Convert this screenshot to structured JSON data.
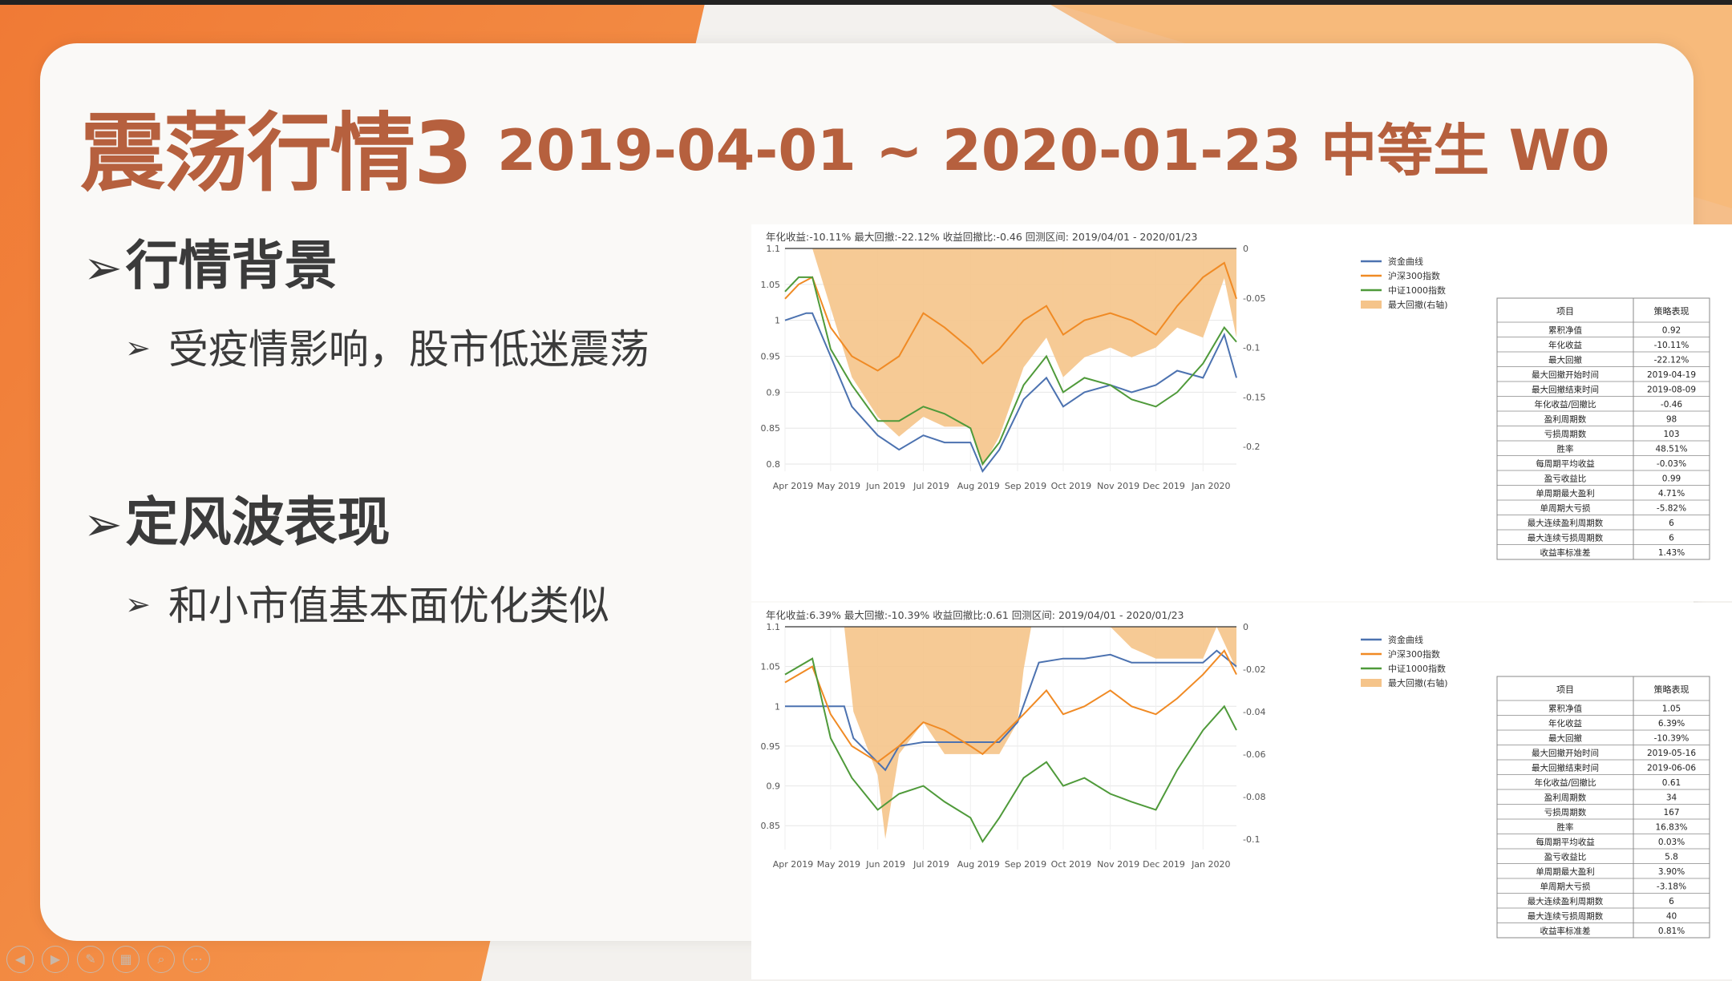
{
  "slide": {
    "title": "震荡行情3",
    "subtitle": "2019-04-01 ~ 2020-01-23 中等生 W0",
    "section1": "行情背景",
    "section1_item": "受疫情影响，股市低迷震荡",
    "section2": "定风波表现",
    "section2_item": "和小市值基本面优化类似",
    "bullet_glyph": "➢"
  },
  "colors": {
    "background_orange": "#f08a3e",
    "title": "#b6603e",
    "equity": "#4c72b0",
    "hs300": "#f08a24",
    "zz1000": "#4f9a3a",
    "drawdown": "#f5c48a"
  },
  "toolbar_icons": [
    "prev-icon",
    "next-icon",
    "pen-icon",
    "grid-icon",
    "zoom-icon",
    "more-icon"
  ],
  "chart_data": [
    {
      "type": "line",
      "title": "年化收益:-10.11%   最大回撤:-22.12%   收益回撤比:-0.46   回测区间: 2019/04/01 - 2020/01/23",
      "x_ticks": [
        "Apr 2019",
        "May 2019",
        "Jun 2019",
        "Jul 2019",
        "Aug 2019",
        "Sep 2019",
        "Oct 2019",
        "Nov 2019",
        "Dec 2019",
        "Jan 2020"
      ],
      "x_range": [
        "2019-04-01",
        "2020-01-23"
      ],
      "ylim": [
        0.79,
        1.1
      ],
      "y_ticks": [
        "1.1",
        "1.05",
        "1",
        "0.95",
        "0.9",
        "0.85",
        "0.8"
      ],
      "y2lim": [
        -0.225,
        0
      ],
      "y2_ticks": [
        "0",
        "-0.05",
        "-0.1",
        "-0.15",
        "-0.2"
      ],
      "legend": [
        "资金曲线",
        "沪深300指数",
        "中证1000指数",
        "最大回撤(右轴)"
      ],
      "series": [
        {
          "name": "资金曲线",
          "x": [
            "2019-04-01",
            "2019-04-15",
            "2019-04-19",
            "2019-05-01",
            "2019-05-15",
            "2019-06-01",
            "2019-06-15",
            "2019-07-01",
            "2019-07-15",
            "2019-08-01",
            "2019-08-09",
            "2019-08-20",
            "2019-09-05",
            "2019-09-20",
            "2019-10-01",
            "2019-10-15",
            "2019-11-01",
            "2019-11-15",
            "2019-12-01",
            "2019-12-15",
            "2020-01-01",
            "2020-01-15",
            "2020-01-23"
          ],
          "values": [
            1.0,
            1.01,
            1.01,
            0.95,
            0.88,
            0.84,
            0.82,
            0.84,
            0.83,
            0.83,
            0.79,
            0.82,
            0.89,
            0.92,
            0.88,
            0.9,
            0.91,
            0.9,
            0.91,
            0.93,
            0.92,
            0.98,
            0.92
          ]
        },
        {
          "name": "沪深300指数",
          "x": [
            "2019-04-01",
            "2019-04-10",
            "2019-04-19",
            "2019-05-01",
            "2019-05-15",
            "2019-06-01",
            "2019-06-15",
            "2019-07-01",
            "2019-07-15",
            "2019-08-01",
            "2019-08-09",
            "2019-08-20",
            "2019-09-05",
            "2019-09-20",
            "2019-10-01",
            "2019-10-15",
            "2019-11-01",
            "2019-11-15",
            "2019-12-01",
            "2019-12-15",
            "2020-01-01",
            "2020-01-15",
            "2020-01-23"
          ],
          "values": [
            1.03,
            1.05,
            1.06,
            0.99,
            0.95,
            0.93,
            0.95,
            1.01,
            0.99,
            0.96,
            0.94,
            0.96,
            1.0,
            1.02,
            0.98,
            1.0,
            1.01,
            1.0,
            0.98,
            1.02,
            1.06,
            1.08,
            1.03
          ]
        },
        {
          "name": "中证1000指数",
          "x": [
            "2019-04-01",
            "2019-04-10",
            "2019-04-19",
            "2019-05-01",
            "2019-05-15",
            "2019-06-01",
            "2019-06-15",
            "2019-07-01",
            "2019-07-15",
            "2019-08-01",
            "2019-08-09",
            "2019-08-20",
            "2019-09-05",
            "2019-09-20",
            "2019-10-01",
            "2019-10-15",
            "2019-11-01",
            "2019-11-15",
            "2019-12-01",
            "2019-12-15",
            "2020-01-01",
            "2020-01-15",
            "2020-01-23"
          ],
          "values": [
            1.04,
            1.06,
            1.06,
            0.96,
            0.91,
            0.86,
            0.86,
            0.88,
            0.87,
            0.85,
            0.8,
            0.83,
            0.91,
            0.95,
            0.9,
            0.92,
            0.91,
            0.89,
            0.88,
            0.9,
            0.94,
            0.99,
            0.97
          ]
        },
        {
          "name": "最大回撤(右轴)",
          "x": [
            "2019-04-01",
            "2019-04-19",
            "2019-05-01",
            "2019-05-15",
            "2019-06-01",
            "2019-06-15",
            "2019-07-01",
            "2019-07-15",
            "2019-08-01",
            "2019-08-09",
            "2019-08-20",
            "2019-09-05",
            "2019-09-20",
            "2019-10-01",
            "2019-10-15",
            "2019-11-01",
            "2019-11-15",
            "2019-12-01",
            "2019-12-15",
            "2020-01-01",
            "2020-01-15",
            "2020-01-23"
          ],
          "values": [
            0,
            0,
            -0.06,
            -0.13,
            -0.17,
            -0.19,
            -0.17,
            -0.18,
            -0.18,
            -0.22,
            -0.19,
            -0.12,
            -0.09,
            -0.13,
            -0.11,
            -0.1,
            -0.11,
            -0.1,
            -0.08,
            -0.09,
            -0.03,
            -0.09
          ]
        }
      ],
      "table": {
        "headers": [
          "项目",
          "策略表现"
        ],
        "rows": [
          [
            "累积净值",
            "0.92"
          ],
          [
            "年化收益",
            "-10.11%"
          ],
          [
            "最大回撤",
            "-22.12%"
          ],
          [
            "最大回撤开始时间",
            "2019-04-19"
          ],
          [
            "最大回撤结束时间",
            "2019-08-09"
          ],
          [
            "年化收益/回撤比",
            "-0.46"
          ],
          [
            "盈利周期数",
            "98"
          ],
          [
            "亏损周期数",
            "103"
          ],
          [
            "胜率",
            "48.51%"
          ],
          [
            "每周期平均收益",
            "-0.03%"
          ],
          [
            "盈亏收益比",
            "0.99"
          ],
          [
            "单周期最大盈利",
            "4.71%"
          ],
          [
            "单周期大亏损",
            "-5.82%"
          ],
          [
            "最大连续盈利周期数",
            "6"
          ],
          [
            "最大连续亏损周期数",
            "6"
          ],
          [
            "收益率标准差",
            "1.43%"
          ]
        ]
      }
    },
    {
      "type": "line",
      "title": "年化收益:6.39%   最大回撤:-10.39%   收益回撤比:0.61   回测区间: 2019/04/01 - 2020/01/23",
      "x_ticks": [
        "Apr 2019",
        "May 2019",
        "Jun 2019",
        "Jul 2019",
        "Aug 2019",
        "Sep 2019",
        "Oct 2019",
        "Nov 2019",
        "Dec 2019",
        "Jan 2020"
      ],
      "x_range": [
        "2019-04-01",
        "2020-01-23"
      ],
      "ylim": [
        0.82,
        1.1
      ],
      "y_ticks": [
        "1.1",
        "1.05",
        "1",
        "0.95",
        "0.9",
        "0.85"
      ],
      "y2lim": [
        -0.105,
        0
      ],
      "y2_ticks": [
        "0",
        "-0.02",
        "-0.04",
        "-0.06",
        "-0.08",
        "-0.1"
      ],
      "legend": [
        "资金曲线",
        "沪深300指数",
        "中证1000指数",
        "最大回撤(右轴)"
      ],
      "series": [
        {
          "name": "资金曲线",
          "x": [
            "2019-04-01",
            "2019-05-10",
            "2019-05-16",
            "2019-06-06",
            "2019-06-15",
            "2019-07-01",
            "2019-08-01",
            "2019-08-20",
            "2019-09-01",
            "2019-09-15",
            "2019-10-01",
            "2019-10-15",
            "2019-11-01",
            "2019-11-15",
            "2019-12-01",
            "2019-12-15",
            "2020-01-01",
            "2020-01-10",
            "2020-01-23"
          ],
          "values": [
            1.0,
            1.0,
            0.96,
            0.92,
            0.95,
            0.955,
            0.955,
            0.955,
            0.98,
            1.055,
            1.06,
            1.06,
            1.065,
            1.055,
            1.055,
            1.055,
            1.055,
            1.07,
            1.05
          ]
        },
        {
          "name": "沪深300指数",
          "x": [
            "2019-04-01",
            "2019-04-19",
            "2019-05-01",
            "2019-05-15",
            "2019-06-01",
            "2019-06-15",
            "2019-07-01",
            "2019-07-15",
            "2019-08-01",
            "2019-08-09",
            "2019-08-20",
            "2019-09-05",
            "2019-09-20",
            "2019-10-01",
            "2019-10-15",
            "2019-11-01",
            "2019-11-15",
            "2019-12-01",
            "2019-12-15",
            "2020-01-01",
            "2020-01-15",
            "2020-01-23"
          ],
          "values": [
            1.03,
            1.05,
            0.99,
            0.95,
            0.93,
            0.95,
            0.98,
            0.97,
            0.95,
            0.94,
            0.96,
            0.99,
            1.02,
            0.99,
            1.0,
            1.02,
            1.0,
            0.99,
            1.01,
            1.04,
            1.07,
            1.04
          ]
        },
        {
          "name": "中证1000指数",
          "x": [
            "2019-04-01",
            "2019-04-19",
            "2019-05-01",
            "2019-05-15",
            "2019-06-01",
            "2019-06-15",
            "2019-07-01",
            "2019-07-15",
            "2019-08-01",
            "2019-08-09",
            "2019-08-20",
            "2019-09-05",
            "2019-09-20",
            "2019-10-01",
            "2019-10-15",
            "2019-11-01",
            "2019-11-15",
            "2019-12-01",
            "2019-12-15",
            "2020-01-01",
            "2020-01-15",
            "2020-01-23"
          ],
          "values": [
            1.04,
            1.06,
            0.96,
            0.91,
            0.87,
            0.89,
            0.9,
            0.88,
            0.86,
            0.83,
            0.86,
            0.91,
            0.93,
            0.9,
            0.91,
            0.89,
            0.88,
            0.87,
            0.92,
            0.97,
            1.0,
            0.97
          ]
        },
        {
          "name": "最大回撤(右轴)",
          "x": [
            "2019-04-01",
            "2019-05-10",
            "2019-05-16",
            "2019-06-01",
            "2019-06-06",
            "2019-06-15",
            "2019-07-01",
            "2019-07-15",
            "2019-08-01",
            "2019-08-20",
            "2019-09-01",
            "2019-09-05",
            "2019-09-10",
            "2019-10-01",
            "2019-11-01",
            "2019-11-15",
            "2019-12-01",
            "2020-01-01",
            "2020-01-10",
            "2020-01-23"
          ],
          "values": [
            0,
            0,
            -0.04,
            -0.07,
            -0.1,
            -0.06,
            -0.045,
            -0.06,
            -0.06,
            -0.06,
            -0.045,
            -0.02,
            0,
            0,
            0,
            -0.01,
            -0.015,
            -0.015,
            0,
            -0.02
          ]
        }
      ],
      "table": {
        "headers": [
          "项目",
          "策略表现"
        ],
        "rows": [
          [
            "累积净值",
            "1.05"
          ],
          [
            "年化收益",
            "6.39%"
          ],
          [
            "最大回撤",
            "-10.39%"
          ],
          [
            "最大回撤开始时间",
            "2019-05-16"
          ],
          [
            "最大回撤结束时间",
            "2019-06-06"
          ],
          [
            "年化收益/回撤比",
            "0.61"
          ],
          [
            "盈利周期数",
            "34"
          ],
          [
            "亏损周期数",
            "167"
          ],
          [
            "胜率",
            "16.83%"
          ],
          [
            "每周期平均收益",
            "0.03%"
          ],
          [
            "盈亏收益比",
            "5.8"
          ],
          [
            "单周期最大盈利",
            "3.90%"
          ],
          [
            "单周期大亏损",
            "-3.18%"
          ],
          [
            "最大连续盈利周期数",
            "6"
          ],
          [
            "最大连续亏损周期数",
            "40"
          ],
          [
            "收益率标准差",
            "0.81%"
          ]
        ]
      }
    }
  ]
}
